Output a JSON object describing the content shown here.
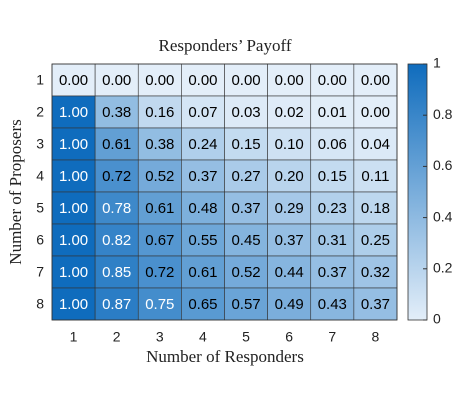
{
  "chart_data": {
    "type": "heatmap",
    "title": "Responders’ Payoff",
    "x_label": "Number of Responders",
    "y_label": "Number of Proposers",
    "x_categories": [
      "1",
      "2",
      "3",
      "4",
      "5",
      "6",
      "7",
      "8"
    ],
    "y_categories": [
      "1",
      "2",
      "3",
      "4",
      "5",
      "6",
      "7",
      "8"
    ],
    "values": [
      [
        0,
        0,
        0,
        0,
        0,
        0,
        0,
        0
      ],
      [
        1,
        0.38,
        0.16,
        0.07,
        0.03,
        0.02,
        0.01,
        0
      ],
      [
        1,
        0.61,
        0.38,
        0.24,
        0.15,
        0.1,
        0.06,
        0.04
      ],
      [
        1,
        0.72,
        0.52,
        0.37,
        0.27,
        0.2,
        0.15,
        0.11
      ],
      [
        1,
        0.78,
        0.61,
        0.48,
        0.37,
        0.29,
        0.23,
        0.18
      ],
      [
        1,
        0.82,
        0.67,
        0.55,
        0.45,
        0.37,
        0.31,
        0.25
      ],
      [
        1,
        0.85,
        0.72,
        0.61,
        0.52,
        0.44,
        0.37,
        0.32
      ],
      [
        1,
        0.87,
        0.75,
        0.65,
        0.57,
        0.49,
        0.43,
        0.37
      ]
    ],
    "value_labels": [
      [
        "0.00",
        "0.00",
        "0.00",
        "0.00",
        "0.00",
        "0.00",
        "0.00",
        "0.00"
      ],
      [
        "1.00",
        "0.38",
        "0.16",
        "0.07",
        "0.03",
        "0.02",
        "0.01",
        "0.00"
      ],
      [
        "1.00",
        "0.61",
        "0.38",
        "0.24",
        "0.15",
        "0.10",
        "0.06",
        "0.04"
      ],
      [
        "1.00",
        "0.72",
        "0.52",
        "0.37",
        "0.27",
        "0.20",
        "0.15",
        "0.11"
      ],
      [
        "1.00",
        "0.78",
        "0.61",
        "0.48",
        "0.37",
        "0.29",
        "0.23",
        "0.18"
      ],
      [
        "1.00",
        "0.82",
        "0.67",
        "0.55",
        "0.45",
        "0.37",
        "0.31",
        "0.25"
      ],
      [
        "1.00",
        "0.85",
        "0.72",
        "0.61",
        "0.52",
        "0.44",
        "0.37",
        "0.32"
      ],
      [
        "1.00",
        "0.87",
        "0.75",
        "0.65",
        "0.57",
        "0.49",
        "0.43",
        "0.37"
      ]
    ],
    "colormap": [
      "#e3eef9",
      "#0f6cbd"
    ],
    "clim": [
      0,
      1
    ],
    "cticks": [
      0,
      0.2,
      0.4,
      0.6,
      0.8,
      1
    ]
  }
}
